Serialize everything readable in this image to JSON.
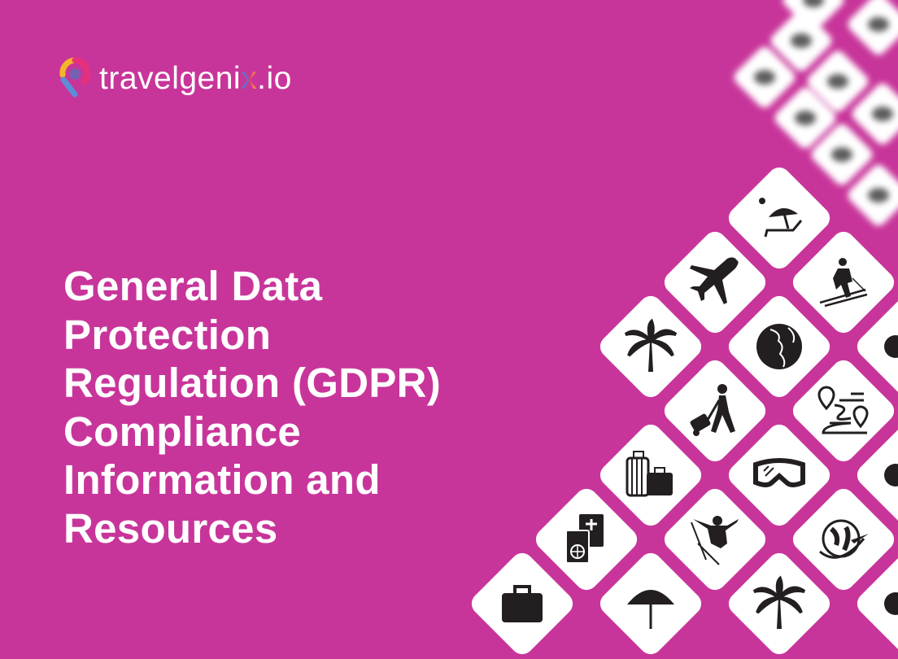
{
  "brand": {
    "name": "travelgenix.io",
    "wordmark_parts": [
      "travelgeni",
      "x",
      ".io"
    ],
    "colors": {
      "background": "#c8359a",
      "tile": "#ffffff",
      "icon": "#231f20",
      "logo_yellow": "#f5b52a",
      "logo_pink": "#e8307a",
      "logo_blue": "#5b8ed6",
      "logo_purple": "#7a5fb0"
    }
  },
  "headline": {
    "lines": [
      "General Data",
      "Protection",
      "Regulation (GDPR)",
      "Compliance",
      "Information and",
      "Resources"
    ]
  },
  "tiles": [
    {
      "icon": "beach-umbrella-icon"
    },
    {
      "icon": "airplane-icon"
    },
    {
      "icon": "skier-icon"
    },
    {
      "icon": "palm-tree-icon"
    },
    {
      "icon": "globe-icon"
    },
    {
      "icon": "traveler-with-luggage-icon"
    },
    {
      "icon": "route-map-icon"
    },
    {
      "icon": "luggage-icon"
    },
    {
      "icon": "ski-goggles-icon"
    },
    {
      "icon": "passport-icon"
    },
    {
      "icon": "ski-jumper-icon"
    },
    {
      "icon": "globe-plane-icon"
    },
    {
      "icon": "umbrella-icon"
    },
    {
      "icon": "palm-tree-icon"
    },
    {
      "icon": "briefcase-icon"
    }
  ]
}
